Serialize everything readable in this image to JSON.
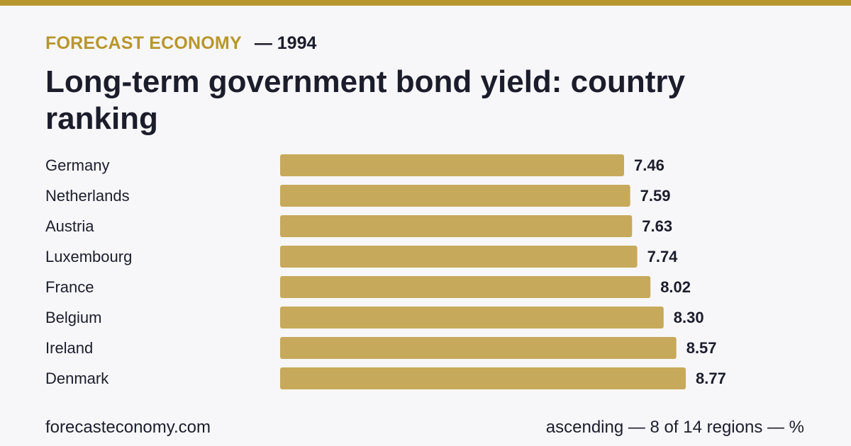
{
  "header": {
    "brand": "FORECAST ECONOMY",
    "year_label": "— 1994",
    "title": "Long-term government bond yield: country ranking"
  },
  "footer": {
    "site": "forecasteconomy.com",
    "note": "ascending — 8 of 14 regions — %"
  },
  "colors": {
    "accent": "#b8962e",
    "bar": "#c7a95c",
    "background": "#f7f7fa",
    "text": "#1c1d2b"
  },
  "chart_data": {
    "type": "bar",
    "orientation": "horizontal",
    "sort": "ascending",
    "categories": [
      "Germany",
      "Netherlands",
      "Austria",
      "Luxembourg",
      "France",
      "Belgium",
      "Ireland",
      "Denmark"
    ],
    "values": [
      7.46,
      7.59,
      7.63,
      7.74,
      8.02,
      8.3,
      8.57,
      8.77
    ],
    "value_labels": [
      "7.46",
      "7.59",
      "7.63",
      "7.74",
      "8.02",
      "8.30",
      "8.57",
      "8.77"
    ],
    "unit": "%",
    "grid": false,
    "legend": "none"
  }
}
